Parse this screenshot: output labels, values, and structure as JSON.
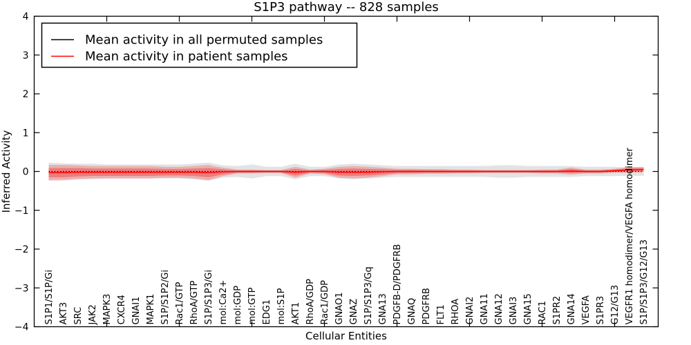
{
  "window": {
    "background": "#ffffff"
  },
  "chart_data": {
    "type": "line",
    "title": "S1P3 pathway -- 828 samples",
    "xlabel": "Cellular Entities",
    "ylabel": "Inferred Activity",
    "ylim": [
      -4,
      4
    ],
    "xlim": [
      0,
      43
    ],
    "grid": false,
    "legend_position": "upper left",
    "ytick_labels": [
      "4",
      "3",
      "2",
      "1",
      "0",
      "−1",
      "−2",
      "−3",
      "−4"
    ],
    "ytick_values": [
      4,
      3,
      2,
      1,
      0,
      -1,
      -2,
      -3,
      -4
    ],
    "x_major_tick_units": [
      5,
      10,
      15,
      20,
      25,
      30,
      35,
      40
    ],
    "categories": [
      "S1P1/S1P/Gi",
      "AKT3",
      "SRC",
      "JAK2",
      "MAPK3",
      "CXCR4",
      "GNAI1",
      "MAPK1",
      "S1P/S1P2/Gi",
      "Rac1/GTP",
      "RhoA/GTP",
      "S1P/S1P3/Gi",
      "mol:Ca2+",
      "mol:GDP",
      "mol:GTP",
      "EDG1",
      "mol:S1P",
      "AKT1",
      "RhoA/GDP",
      "Rac1/GDP",
      "GNAO1",
      "GNAZ",
      "S1P/S1P3/Gq",
      "GNA13",
      "PDGFB-D/PDGFRB",
      "GNAQ",
      "PDGFRB",
      "FLT1",
      "RHOA",
      "GNAI2",
      "GNA11",
      "GNA12",
      "GNAI3",
      "GNA15",
      "RAC1",
      "S1PR2",
      "GNA14",
      "VEGFA",
      "S1PR3",
      "G12/G13",
      "VEGFR1 homodimer/VEGFA homodimer",
      "S1P/S1P3/G12/G13"
    ],
    "series": [
      {
        "name": "Mean activity in all permuted samples",
        "color": "#000000",
        "line_style": "dotted",
        "band_color": "#999999",
        "band_opacity": 0.28,
        "values": [
          0,
          0,
          0,
          0,
          0,
          0,
          0,
          0,
          0,
          0,
          0,
          0,
          0,
          0,
          0,
          0,
          0,
          0,
          0,
          0,
          0,
          0,
          0,
          0,
          0,
          0,
          0,
          0,
          0,
          0,
          0,
          0,
          0,
          0,
          0,
          0,
          0,
          0,
          0,
          0,
          0,
          0
        ],
        "band": [
          0.23,
          0.21,
          0.2,
          0.2,
          0.18,
          0.18,
          0.18,
          0.18,
          0.18,
          0.18,
          0.2,
          0.23,
          0.16,
          0.14,
          0.18,
          0.12,
          0.12,
          0.2,
          0.12,
          0.12,
          0.18,
          0.2,
          0.18,
          0.16,
          0.14,
          0.14,
          0.14,
          0.14,
          0.14,
          0.14,
          0.14,
          0.16,
          0.16,
          0.14,
          0.14,
          0.14,
          0.14,
          0.12,
          0.12,
          0.12,
          0.11,
          0.11
        ]
      },
      {
        "name": "Mean activity in patient samples",
        "color": "#ff0000",
        "line_style": "solid",
        "band_color": "#ff0000",
        "band_opacity": 0.22,
        "values": [
          -0.03,
          -0.03,
          -0.02,
          -0.02,
          -0.02,
          -0.02,
          -0.02,
          -0.02,
          -0.02,
          -0.02,
          -0.02,
          -0.03,
          -0.01,
          0,
          0,
          0,
          0,
          -0.02,
          0,
          0,
          -0.02,
          -0.02,
          -0.02,
          -0.01,
          0,
          0,
          0,
          0,
          0,
          0,
          0,
          0,
          0,
          0,
          0,
          0,
          0.01,
          0,
          0,
          0.02,
          0.04,
          0.05
        ],
        "band": [
          0.2,
          0.2,
          0.18,
          0.16,
          0.16,
          0.16,
          0.16,
          0.16,
          0.14,
          0.14,
          0.16,
          0.2,
          0.11,
          0.05,
          0.05,
          0.04,
          0.04,
          0.14,
          0.05,
          0.07,
          0.14,
          0.16,
          0.14,
          0.11,
          0.07,
          0.07,
          0.06,
          0.06,
          0.05,
          0.05,
          0.04,
          0.04,
          0.04,
          0.04,
          0.05,
          0.05,
          0.09,
          0.05,
          0.05,
          0.05,
          0.07,
          0.07
        ]
      }
    ]
  }
}
